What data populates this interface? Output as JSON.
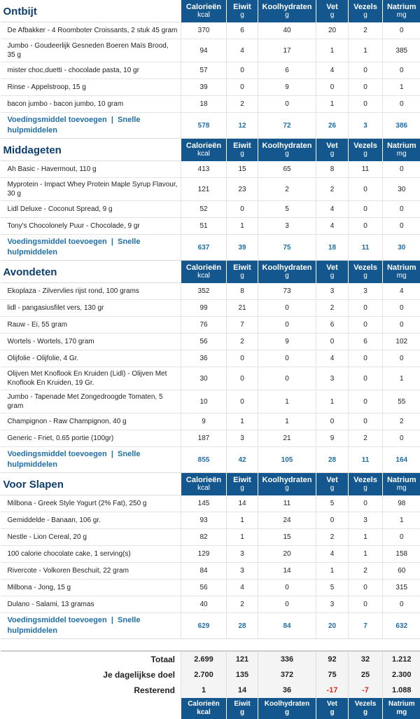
{
  "columns": [
    {
      "name": "Calorieën",
      "unit": "kcal"
    },
    {
      "name": "Eiwit",
      "unit": "g"
    },
    {
      "name": "Koolhydraten",
      "unit": "g"
    },
    {
      "name": "Vet",
      "unit": "g"
    },
    {
      "name": "Vezels",
      "unit": "g"
    },
    {
      "name": "Natrium",
      "unit": "mg"
    }
  ],
  "links": {
    "add": "Voedingsmiddel toevoegen",
    "sep": "|",
    "quick": "Snelle hulpmiddelen"
  },
  "meals": [
    {
      "title": "Ontbijt",
      "foods": [
        {
          "name": "De Afbakker - 4 Roomboter Croissants, 2 stuk 45 gram",
          "v": [
            "370",
            "6",
            "40",
            "20",
            "2",
            "0"
          ]
        },
        {
          "name": "Jumbo - Goudeerlijk Gesneden Boeren Maïs Brood, 35 g",
          "v": [
            "94",
            "4",
            "17",
            "1",
            "1",
            "385"
          ]
        },
        {
          "name": "mister choc,duetti - chocolade pasta, 10 gr",
          "v": [
            "57",
            "0",
            "6",
            "4",
            "0",
            "0"
          ]
        },
        {
          "name": "Rinse - Appelstroop, 15 g",
          "v": [
            "39",
            "0",
            "9",
            "0",
            "0",
            "1"
          ]
        },
        {
          "name": "bacon jumbo - bacon jumbo, 10 gram",
          "v": [
            "18",
            "2",
            "0",
            "1",
            "0",
            "0"
          ]
        }
      ],
      "totals": [
        "578",
        "12",
        "72",
        "26",
        "3",
        "386"
      ]
    },
    {
      "title": "Middageten",
      "foods": [
        {
          "name": "Ah Basic - Havermout, 110 g",
          "v": [
            "413",
            "15",
            "65",
            "8",
            "11",
            "0"
          ]
        },
        {
          "name": "Myprotein - Impact Whey Protein Maple Syrup Flavour, 30 g",
          "v": [
            "121",
            "23",
            "2",
            "2",
            "0",
            "30"
          ]
        },
        {
          "name": "Lidl Deluxe - Coconut Spread, 9 g",
          "v": [
            "52",
            "0",
            "5",
            "4",
            "0",
            "0"
          ]
        },
        {
          "name": "Tony's Chocolonely Puur - Chocolade, 9 gr",
          "v": [
            "51",
            "1",
            "3",
            "4",
            "0",
            "0"
          ]
        }
      ],
      "totals": [
        "637",
        "39",
        "75",
        "18",
        "11",
        "30"
      ]
    },
    {
      "title": "Avondeten",
      "foods": [
        {
          "name": "Ekoplaza - Zilvervlies rijst rond, 100 grams",
          "v": [
            "352",
            "8",
            "73",
            "3",
            "3",
            "4"
          ]
        },
        {
          "name": "lidl - pangasiusfilet vers, 130 gr",
          "v": [
            "99",
            "21",
            "0",
            "2",
            "0",
            "0"
          ]
        },
        {
          "name": "Rauw - Ei, 55 gram",
          "v": [
            "76",
            "7",
            "0",
            "6",
            "0",
            "0"
          ]
        },
        {
          "name": "Wortels - Wortels, 170 gram",
          "v": [
            "56",
            "2",
            "9",
            "0",
            "6",
            "102"
          ]
        },
        {
          "name": "Olijfolie - Olijfolie, 4 Gr.",
          "v": [
            "36",
            "0",
            "0",
            "4",
            "0",
            "0"
          ]
        },
        {
          "name": "Olijven Met Knoflook En Kruiden (Lidl) - Olijven Met Knoflook En Kruiden, 19 Gr.",
          "v": [
            "30",
            "0",
            "0",
            "3",
            "0",
            "1"
          ]
        },
        {
          "name": "Jumbo - Tapenade Met Zongedroogde Tomaten, 5 gram",
          "v": [
            "10",
            "0",
            "1",
            "1",
            "0",
            "55"
          ]
        },
        {
          "name": "Champignon - Raw Champignon, 40 g",
          "v": [
            "9",
            "1",
            "1",
            "0",
            "0",
            "2"
          ]
        },
        {
          "name": "Generic - Friet, 0.65 portie (100gr)",
          "v": [
            "187",
            "3",
            "21",
            "9",
            "2",
            "0"
          ]
        }
      ],
      "totals": [
        "855",
        "42",
        "105",
        "28",
        "11",
        "164"
      ]
    },
    {
      "title": "Voor Slapen",
      "foods": [
        {
          "name": "Milbona - Greek Style Yogurt (2% Fat), 250 g",
          "v": [
            "145",
            "14",
            "11",
            "5",
            "0",
            "98"
          ]
        },
        {
          "name": "Gemiddelde - Banaan, 106 gr.",
          "v": [
            "93",
            "1",
            "24",
            "0",
            "3",
            "1"
          ]
        },
        {
          "name": "Nestle - Lion Cereal, 20 g",
          "v": [
            "82",
            "1",
            "15",
            "2",
            "1",
            "0"
          ]
        },
        {
          "name": "100 calorie chocolate cake, 1 serving(s)",
          "v": [
            "129",
            "3",
            "20",
            "4",
            "1",
            "158"
          ]
        },
        {
          "name": "Rivercote - Volkoren Beschuit, 22 gram",
          "v": [
            "84",
            "3",
            "14",
            "1",
            "2",
            "60"
          ]
        },
        {
          "name": "Milbona - Jong, 15 g",
          "v": [
            "56",
            "4",
            "0",
            "5",
            "0",
            "315"
          ]
        },
        {
          "name": "Dulano - Salami, 13 gramas",
          "v": [
            "40",
            "2",
            "0",
            "3",
            "0",
            "0"
          ]
        }
      ],
      "totals": [
        "629",
        "28",
        "84",
        "20",
        "7",
        "632"
      ]
    }
  ],
  "summary": [
    {
      "label": "Totaal",
      "v": [
        "2.699",
        "121",
        "336",
        "92",
        "32",
        "1.212"
      ],
      "neg": []
    },
    {
      "label": "Je dagelijkse doel",
      "v": [
        "2.700",
        "135",
        "372",
        "75",
        "25",
        "2.300"
      ],
      "neg": []
    },
    {
      "label": "Resterend",
      "v": [
        "1",
        "14",
        "36",
        "-17",
        "-7",
        "1.088"
      ],
      "neg": [
        3,
        4
      ]
    }
  ],
  "colors": {
    "header_bg": "#13578e",
    "title": "#0e3e6e",
    "link": "#1f6fa6",
    "negative": "#e0281a"
  }
}
